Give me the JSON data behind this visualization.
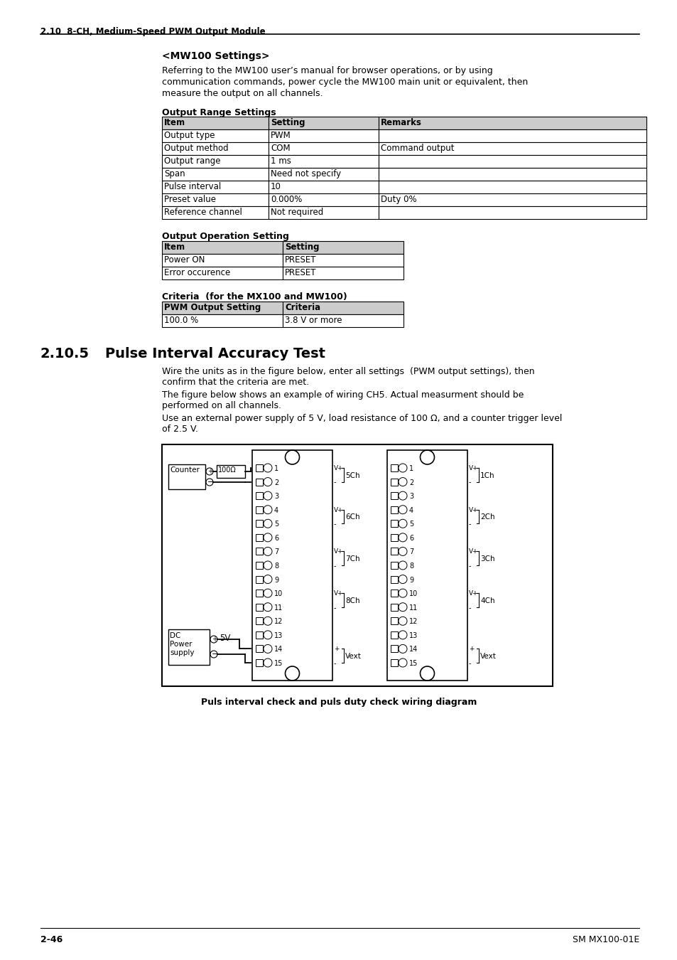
{
  "page_header": "2.10  8-CH, Medium-Speed PWM Output Module",
  "section_title": "<MW100 Settings>",
  "intro_text_1": "Referring to the MW100 user’s manual for browser operations, or by using",
  "intro_text_2": "communication commands, power cycle the MW100 main unit or equivalent, then",
  "intro_text_3": "measure the output on all channels.",
  "table1_title": "Output Range Settings",
  "table1_headers": [
    "Item",
    "Setting",
    "Remarks"
  ],
  "table1_rows": [
    [
      "Output type",
      "PWM",
      ""
    ],
    [
      "Output method",
      "COM",
      "Command output"
    ],
    [
      "Output range",
      "1 ms",
      ""
    ],
    [
      "Span",
      "Need not specify",
      ""
    ],
    [
      "Pulse interval",
      "10",
      ""
    ],
    [
      "Preset value",
      "0.000%",
      "Duty 0%"
    ],
    [
      "Reference channel",
      "Not required",
      ""
    ]
  ],
  "table2_title": "Output Operation Setting",
  "table2_headers": [
    "Item",
    "Setting"
  ],
  "table2_rows": [
    [
      "Power ON",
      "PRESET"
    ],
    [
      "Error occurence",
      "PRESET"
    ]
  ],
  "table3_title": "Criteria  (for the MX100 and MW100)",
  "table3_headers": [
    "PWM Output Setting",
    "Criteria"
  ],
  "table3_rows": [
    [
      "100.0 %",
      "3.8 V or more"
    ]
  ],
  "section2_number": "2.10.5",
  "section2_title": "Pulse Interval Accuracy Test",
  "para1a": "Wire the units as in the figure below, enter all settings  (PWM output settings), then",
  "para1b": "confirm that the criteria are met.",
  "para2a": "The figure below shows an example of wiring CH5. Actual measurment should be",
  "para2b": "performed on all channels.",
  "para3a": "Use an external power supply of 5 V, load resistance of 100 Ω, and a counter trigger level",
  "para3b": "of 2.5 V.",
  "diagram_caption": "Puls interval check and puls duty check wiring diagram",
  "footer_left": "2-46",
  "footer_right": "SM MX100-01E"
}
